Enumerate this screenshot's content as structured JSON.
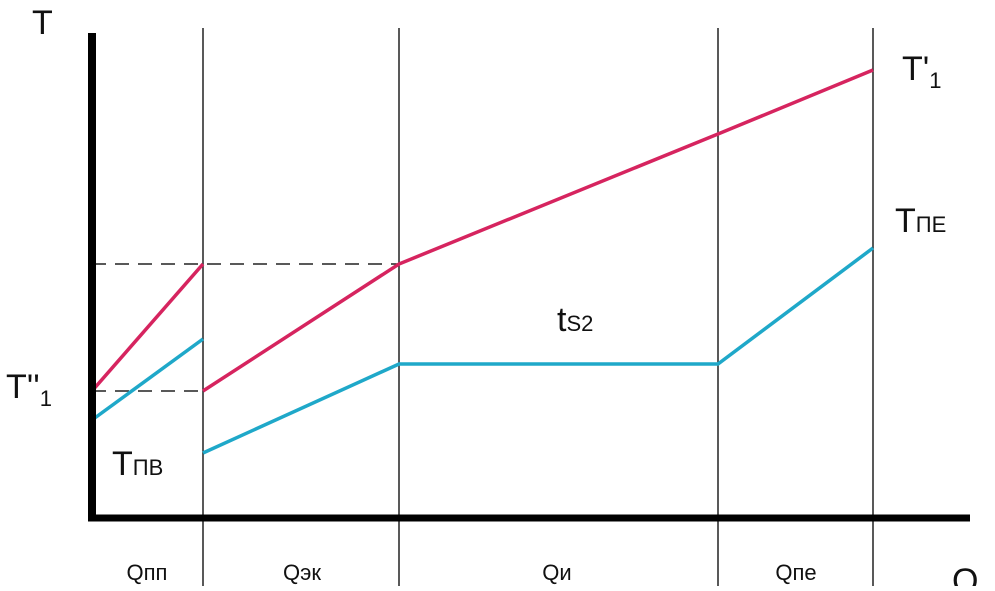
{
  "diagram": {
    "y_axis_label": "T",
    "x_axis_label": "Q",
    "labels": {
      "t_prime_1_main": "T'",
      "t_prime_1_sub": "1",
      "t_double_prime_1_main": "T''",
      "t_double_prime_1_sub": "1",
      "t_pe_main": "T",
      "t_pe_sub": "ПЕ",
      "t_pv_main": "T",
      "t_pv_sub": "ПВ",
      "ts2_main": "t",
      "ts2_sub": "S2"
    },
    "segments": [
      "Qпп",
      "Qэк",
      "Qи",
      "Qпе"
    ],
    "colors": {
      "axis": "#000000",
      "hot_line": "#d6245f",
      "cold_line": "#1fa8c9",
      "grid": "#222222",
      "dashed": "#222222"
    }
  }
}
